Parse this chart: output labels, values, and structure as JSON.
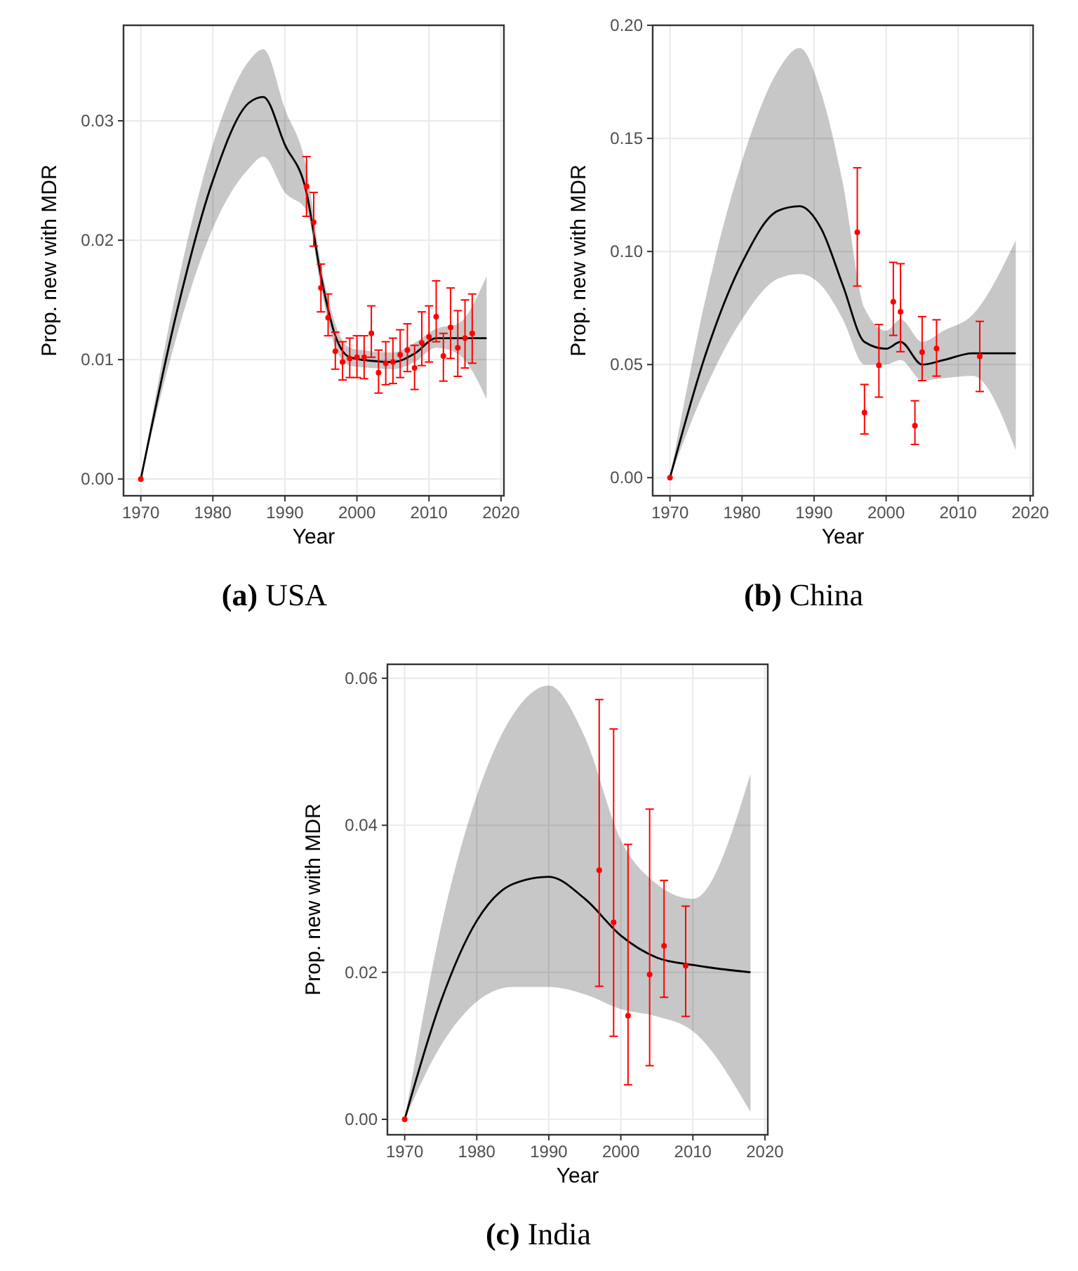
{
  "chart_data": [
    {
      "type": "line",
      "title": "(a) USA",
      "xlabel": "Year",
      "ylabel": "Prop. new with MDR",
      "xlim": [
        1967.6,
        2020.4
      ],
      "ylim": [
        -0.0014,
        0.038
      ],
      "xticks": [
        1970,
        1980,
        1990,
        2000,
        2010,
        2020
      ],
      "yticks": [
        {
          "value": 0,
          "label": "0.00"
        },
        {
          "value": 0.01,
          "label": "0.01"
        },
        {
          "value": 0.02,
          "label": "0.02"
        },
        {
          "value": 0.03,
          "label": "0.03"
        }
      ],
      "grid": true,
      "series": [
        {
          "color": "#000000",
          "x": [
            1970,
            1975,
            1980,
            1985,
            1987,
            1990,
            1993,
            1995,
            1997,
            1999,
            2002,
            2005,
            2008,
            2011,
            2014,
            2018
          ],
          "values": [
            0,
            0.014,
            0.025,
            0.0315,
            0.032,
            0.028,
            0.024,
            0.017,
            0.012,
            0.0102,
            0.0099,
            0.0098,
            0.0105,
            0.0118,
            0.0118,
            0.0118
          ],
          "lower": [
            0,
            0.012,
            0.021,
            0.026,
            0.027,
            0.024,
            0.0225,
            0.016,
            0.011,
            0.0095,
            0.0093,
            0.0092,
            0.0098,
            0.011,
            0.0105,
            0.0067
          ],
          "upper": [
            0,
            0.016,
            0.028,
            0.035,
            0.036,
            0.031,
            0.026,
            0.018,
            0.013,
            0.011,
            0.0107,
            0.0106,
            0.0114,
            0.0126,
            0.013,
            0.017
          ]
        },
        {
          "type": "scatter",
          "color": "#ff0000",
          "marker": "circle",
          "x": [
            1970,
            1993,
            1994,
            1995,
            1996,
            1997,
            1998,
            1999,
            2000,
            2001,
            2002,
            2003,
            2004,
            2005,
            2006,
            2007,
            2008,
            2009,
            2010,
            2011,
            2012,
            2013,
            2014,
            2015,
            2016
          ],
          "values": [
            0,
            0.0245,
            0.0215,
            0.016,
            0.0135,
            0.0107,
            0.0098,
            0.0101,
            0.0102,
            0.0102,
            0.0122,
            0.0089,
            0.0097,
            0.0098,
            0.0104,
            0.0108,
            0.0093,
            0.0114,
            0.0119,
            0.0136,
            0.0103,
            0.0127,
            0.011,
            0.0118,
            0.0122
          ],
          "errors": [
            null,
            [
              0.022,
              0.027
            ],
            [
              0.0195,
              0.024
            ],
            [
              0.014,
              0.018
            ],
            [
              0.012,
              0.0155
            ],
            [
              0.0092,
              0.0123
            ],
            [
              0.0083,
              0.0115
            ],
            [
              0.0085,
              0.0118
            ],
            [
              0.0085,
              0.012
            ],
            [
              0.0084,
              0.012
            ],
            [
              0.0102,
              0.0145
            ],
            [
              0.0072,
              0.0108
            ],
            [
              0.0079,
              0.0115
            ],
            [
              0.008,
              0.0118
            ],
            [
              0.0085,
              0.0125
            ],
            [
              0.009,
              0.013
            ],
            [
              0.0075,
              0.0112
            ],
            [
              0.0095,
              0.014
            ],
            [
              0.0098,
              0.0145
            ],
            [
              0.0115,
              0.0166
            ],
            [
              0.0082,
              0.0122
            ],
            [
              0.0101,
              0.016
            ],
            [
              0.0086,
              0.0141
            ],
            [
              0.0093,
              0.015
            ],
            [
              0.0097,
              0.0155
            ]
          ]
        }
      ]
    },
    {
      "type": "line",
      "title": "(b) China",
      "xlabel": "Year",
      "ylabel": "Prop. new with MDR",
      "xlim": [
        1967.6,
        2020.4
      ],
      "ylim": [
        -0.008,
        0.2
      ],
      "xticks": [
        1970,
        1980,
        1990,
        2000,
        2010,
        2020
      ],
      "yticks": [
        {
          "value": 0,
          "label": "0.00"
        },
        {
          "value": 0.05,
          "label": "0.05"
        },
        {
          "value": 0.1,
          "label": "0.10"
        },
        {
          "value": 0.15,
          "label": "0.15"
        },
        {
          "value": 0.2,
          "label": "0.20"
        }
      ],
      "grid": true,
      "series": [
        {
          "color": "#000000",
          "x": [
            1970,
            1975,
            1980,
            1985,
            1988,
            1991,
            1994,
            1997,
            2000,
            2002,
            2005,
            2008,
            2012,
            2018
          ],
          "values": [
            0,
            0.055,
            0.095,
            0.118,
            0.12,
            0.11,
            0.085,
            0.06,
            0.057,
            0.06,
            0.05,
            0.052,
            0.055,
            0.055
          ],
          "lower": [
            0,
            0.04,
            0.07,
            0.088,
            0.09,
            0.085,
            0.07,
            0.05,
            0.05,
            0.052,
            0.043,
            0.044,
            0.045,
            0.012
          ],
          "upper": [
            0,
            0.08,
            0.14,
            0.18,
            0.19,
            0.17,
            0.13,
            0.075,
            0.065,
            0.07,
            0.06,
            0.065,
            0.072,
            0.105
          ]
        },
        {
          "type": "scatter",
          "color": "#ff0000",
          "marker": "circle",
          "x": [
            1970,
            1996,
            1997,
            1999,
            2001,
            2002,
            2004,
            2005,
            2007,
            2013
          ],
          "values": [
            0,
            0.1085,
            0.0288,
            0.0497,
            0.0778,
            0.0733,
            0.023,
            0.0555,
            0.0571,
            0.0536
          ],
          "errors": [
            null,
            [
              0.0847,
              0.137
            ],
            [
              0.0193,
              0.0412
            ],
            [
              0.0356,
              0.0677
            ],
            [
              0.0629,
              0.0952
            ],
            [
              0.0557,
              0.0946
            ],
            [
              0.0147,
              0.034
            ],
            [
              0.0429,
              0.0712
            ],
            [
              0.0449,
              0.0698
            ],
            [
              0.0381,
              0.0691
            ]
          ]
        }
      ]
    },
    {
      "type": "line",
      "title": "(c) India",
      "xlabel": "Year",
      "ylabel": "Prop. new with MDR",
      "xlim": [
        1967.6,
        2020.4
      ],
      "ylim": [
        -0.0021,
        0.0619
      ],
      "xticks": [
        1970,
        1980,
        1990,
        2000,
        2010,
        2020
      ],
      "yticks": [
        {
          "value": 0,
          "label": "0.00"
        },
        {
          "value": 0.02,
          "label": "0.02"
        },
        {
          "value": 0.04,
          "label": "0.04"
        },
        {
          "value": 0.06,
          "label": "0.06"
        }
      ],
      "grid": true,
      "series": [
        {
          "color": "#000000",
          "x": [
            1970,
            1975,
            1980,
            1985,
            1990,
            1995,
            2000,
            2005,
            2010,
            2018
          ],
          "values": [
            0,
            0.016,
            0.027,
            0.032,
            0.033,
            0.03,
            0.025,
            0.022,
            0.021,
            0.02
          ],
          "lower": [
            0,
            0.01,
            0.016,
            0.018,
            0.018,
            0.017,
            0.015,
            0.014,
            0.012,
            0.001
          ],
          "upper": [
            0,
            0.026,
            0.044,
            0.055,
            0.059,
            0.052,
            0.038,
            0.032,
            0.03,
            0.047
          ]
        },
        {
          "type": "scatter",
          "color": "#ff0000",
          "marker": "circle",
          "x": [
            1970,
            1997,
            1999,
            2001,
            2004,
            2006,
            2009
          ],
          "values": [
            0,
            0.0339,
            0.0268,
            0.0141,
            0.0197,
            0.0236,
            0.0209
          ],
          "errors": [
            null,
            [
              0.0181,
              0.0571
            ],
            [
              0.0113,
              0.0531
            ],
            [
              0.0047,
              0.0374
            ],
            [
              0.0073,
              0.0422
            ],
            [
              0.0166,
              0.0325
            ],
            [
              0.014,
              0.029
            ]
          ]
        }
      ]
    }
  ]
}
